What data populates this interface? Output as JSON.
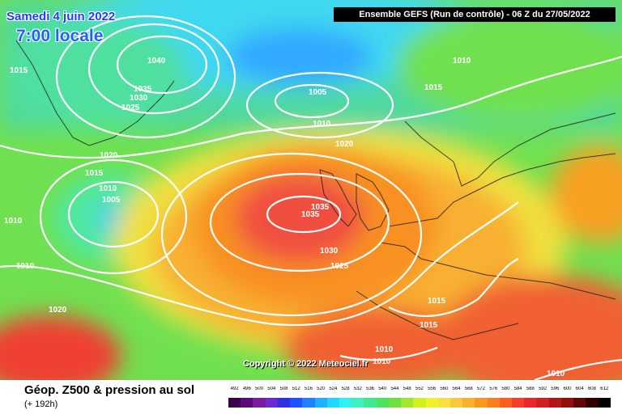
{
  "header": {
    "date": "Samedi 4 juin 2022",
    "local_time": "7:00 locale",
    "run_info": "Ensemble GEFS  (Run de contrôle)  -  06 Z du 27/05/2022"
  },
  "map": {
    "isobar_labels": [
      "1015",
      "1040",
      "1035",
      "1030",
      "1025",
      "1020",
      "1015",
      "1010",
      "1005",
      "1010",
      "1010",
      "1020",
      "1005",
      "1010",
      "1020",
      "1010",
      "1015",
      "1035",
      "1030",
      "1025",
      "1015",
      "1015",
      "1010",
      "1010",
      "1010"
    ],
    "high_center": "1035",
    "copyright": "Copyright © 2022 Meteociel.fr"
  },
  "footer": {
    "field_title": "Géop. Z500 & pression au sol",
    "forecast_step": "(+ 192h)",
    "scale_values": [
      "492",
      "496",
      "500",
      "504",
      "508",
      "512",
      "516",
      "520",
      "524",
      "528",
      "532",
      "536",
      "540",
      "544",
      "548",
      "552",
      "556",
      "560",
      "564",
      "568",
      "572",
      "576",
      "580",
      "584",
      "588",
      "592",
      "596",
      "600",
      "604",
      "608",
      "612"
    ],
    "scale_colors": [
      "#3a0046",
      "#5a0a78",
      "#7a1aa0",
      "#6a2ad0",
      "#3030e0",
      "#2050ff",
      "#2080ff",
      "#20b0ff",
      "#20d8ff",
      "#30f0f0",
      "#40f0c0",
      "#40e890",
      "#50e060",
      "#70e040",
      "#a0e830",
      "#d0f020",
      "#f0f030",
      "#f8e040",
      "#f8c840",
      "#f8b030",
      "#f89820",
      "#f88020",
      "#f86020",
      "#f04030",
      "#e82830",
      "#d02020",
      "#b01818",
      "#901010",
      "#600808",
      "#300000",
      "#000000"
    ]
  },
  "colors": {
    "blue_low": "#30c8ff",
    "green": "#60e060",
    "yellow": "#f8e040",
    "orange": "#f8a020",
    "red_high": "#f04040"
  }
}
